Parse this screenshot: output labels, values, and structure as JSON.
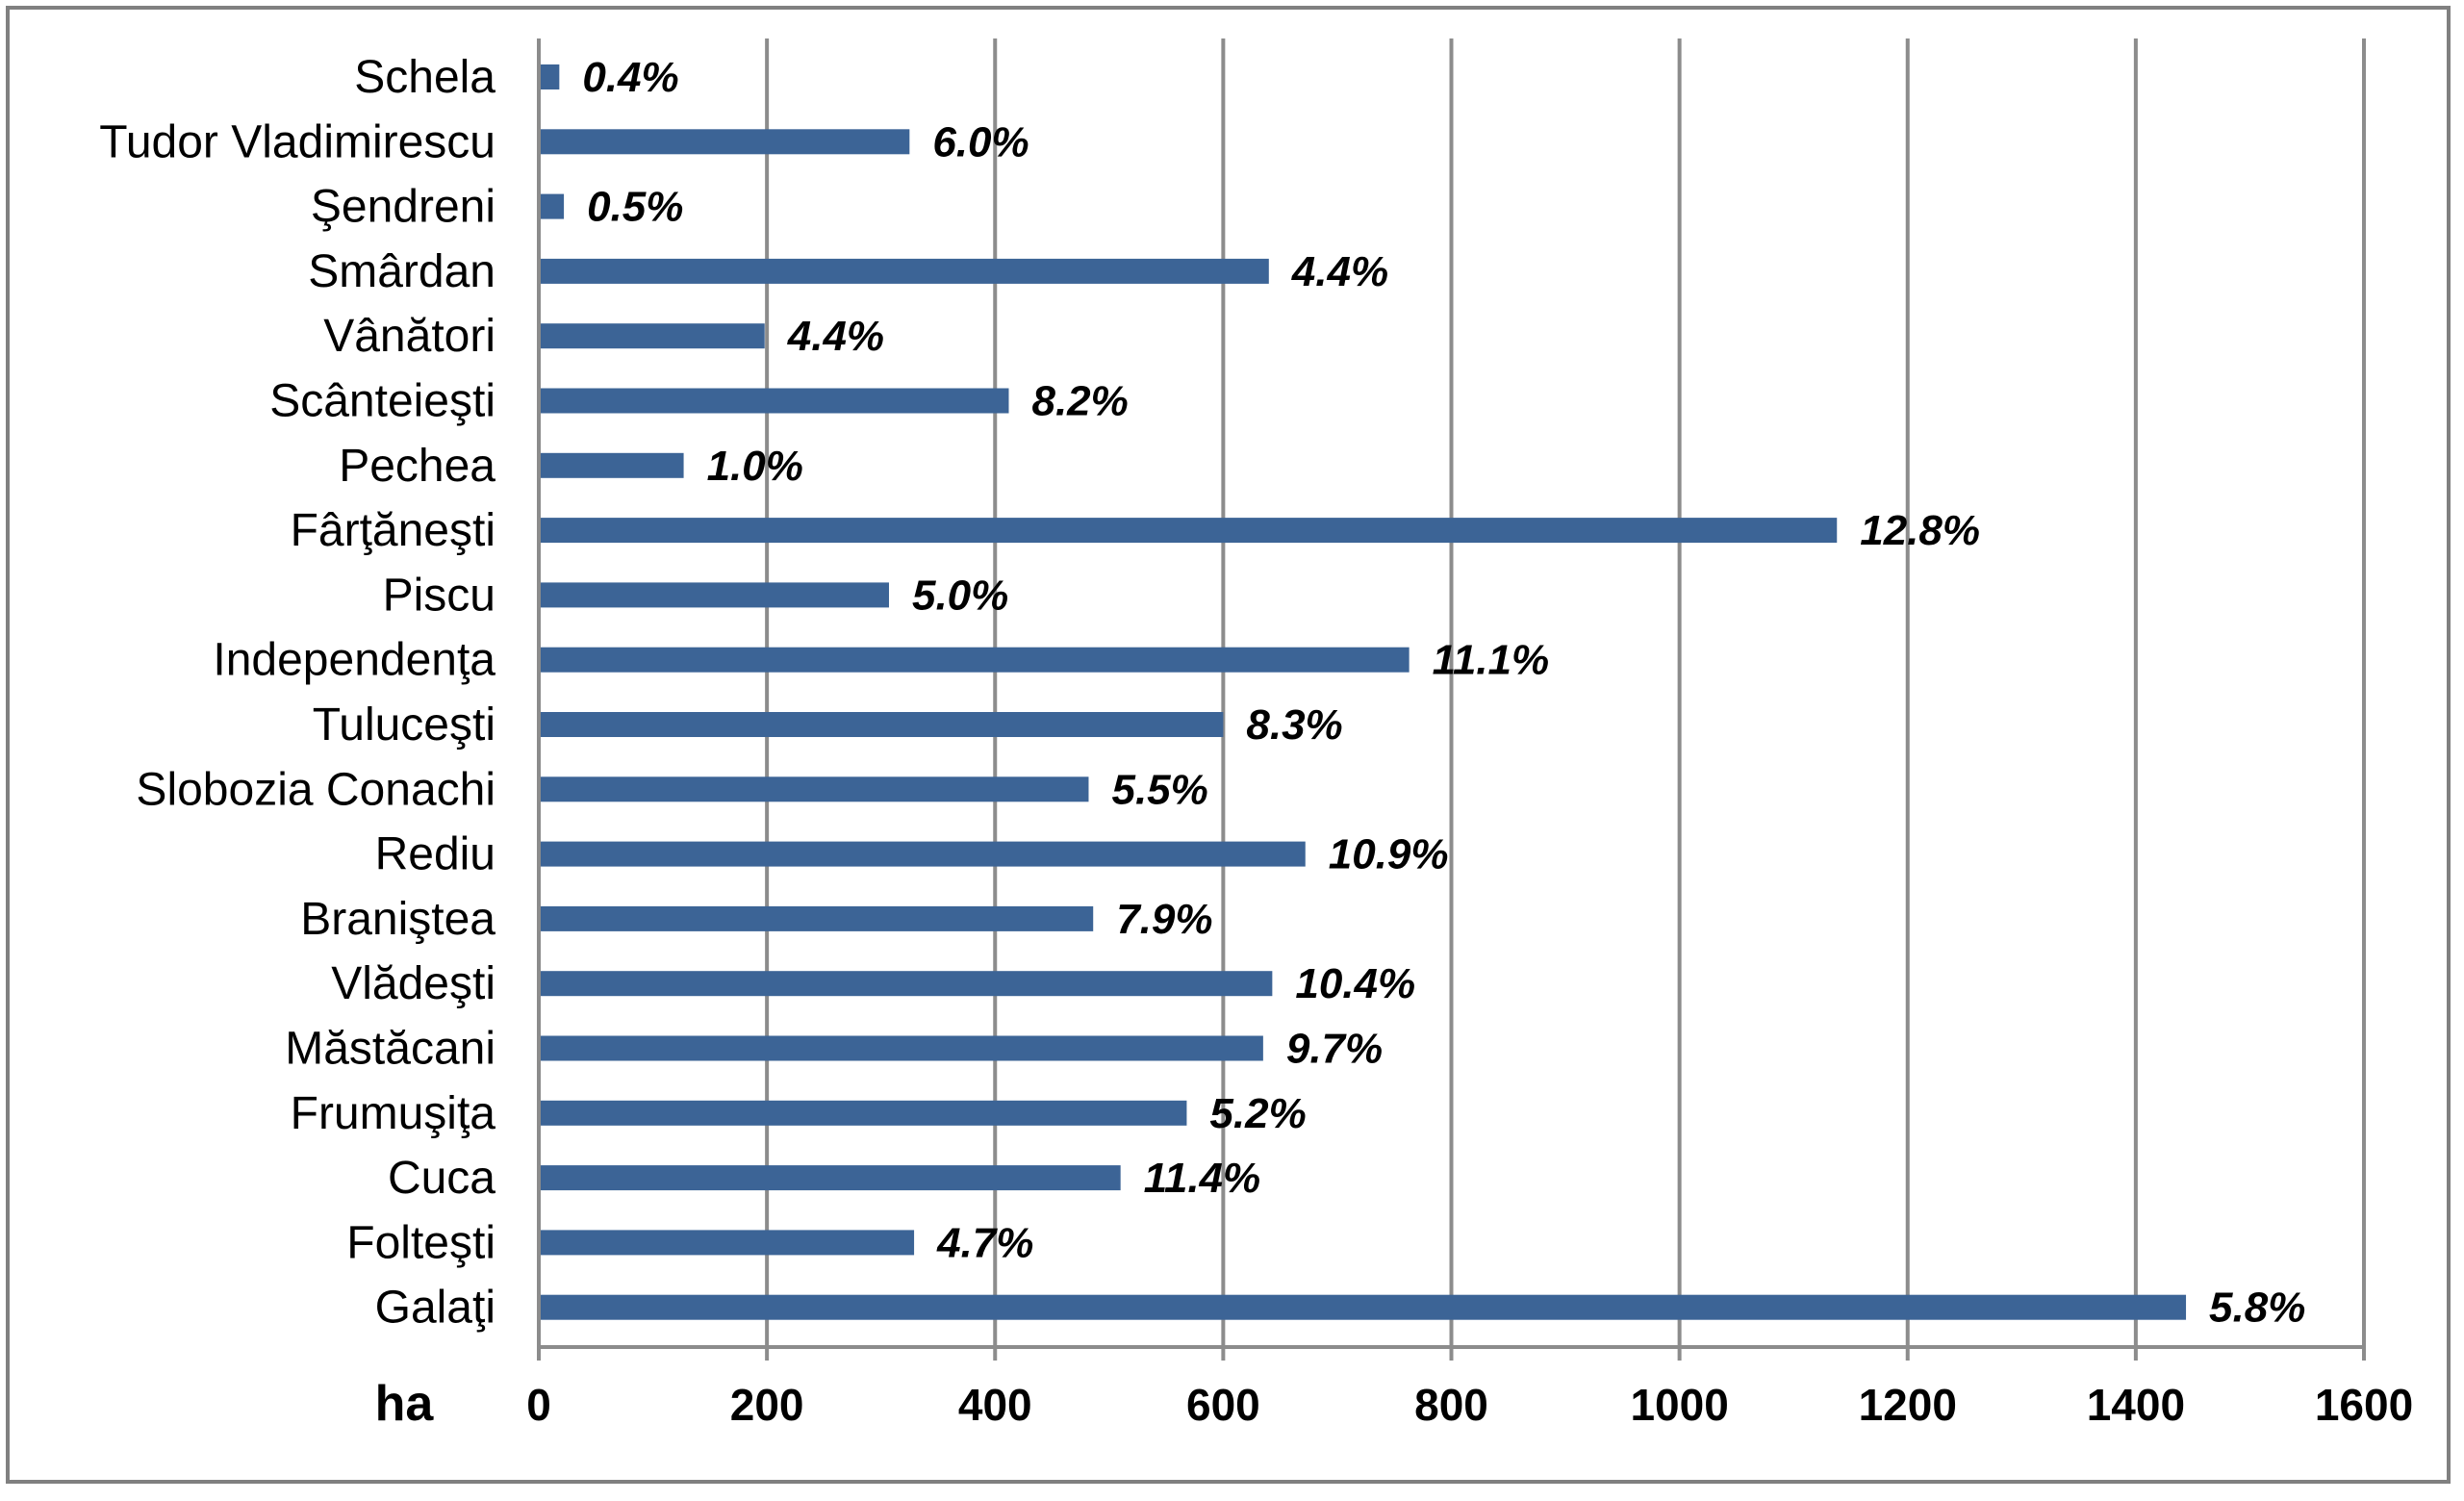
{
  "chart_data": {
    "type": "bar",
    "orientation": "horizontal",
    "title": "",
    "xlabel": "ha",
    "ylabel": "",
    "xlim": [
      0,
      1600
    ],
    "x_ticks": [
      "0",
      "200",
      "400",
      "600",
      "800",
      "1000",
      "1200",
      "1400",
      "1600"
    ],
    "grid": "vertical",
    "legend": "none",
    "bar_color": "#3c6496",
    "categories": [
      "Schela",
      "Tudor Vladimirescu",
      "Şendreni",
      "Smârdan",
      "Vânători",
      "Scânteieşti",
      "Pechea",
      "Fârţăneşti",
      "Piscu",
      "Independenţa",
      "Tuluceşti",
      "Slobozia Conachi",
      "Rediu",
      "Braniştea",
      "Vlădeşti",
      "Măstăcani",
      "Frumuşiţa",
      "Cuca",
      "Folteşti",
      "Galaţi"
    ],
    "values": [
      18,
      325,
      22,
      640,
      198,
      412,
      127,
      1138,
      307,
      763,
      600,
      482,
      672,
      486,
      643,
      635,
      568,
      510,
      329,
      1444
    ],
    "data_labels": [
      "0.4%",
      "6.0%",
      "0.5%",
      "4.4%",
      "4.4%",
      "8.2%",
      "1.0%",
      "12.8%",
      "5.0%",
      "11.1%",
      "8.3%",
      "5.5%",
      "10.9%",
      "7.9%",
      "10.4%",
      "9.7%",
      "5.2%",
      "11.4%",
      "4.7%",
      "5.8%"
    ]
  }
}
